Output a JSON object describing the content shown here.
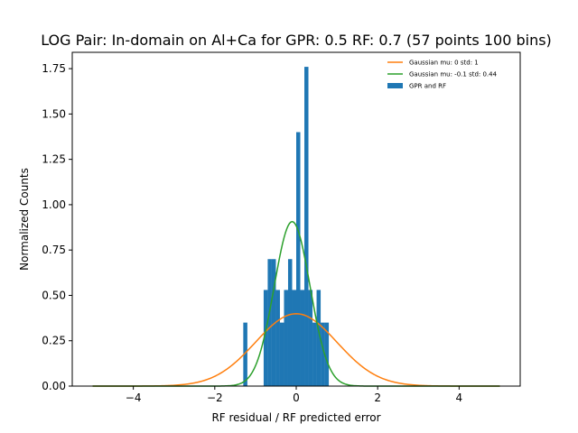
{
  "chart_data": {
    "type": "bar",
    "title": "LOG Pair: In-domain on Al+Ca for GPR: 0.5 RF: 0.7 (57 points 100 bins)",
    "xlabel": "RF residual / RF predicted error",
    "ylabel": "Normalized Counts",
    "xlim": [
      -5.5,
      5.5
    ],
    "ylim": [
      0,
      1.84
    ],
    "xticks": [
      -4,
      -2,
      0,
      2,
      4
    ],
    "xtick_labels": [
      "−4",
      "−2",
      "0",
      "2",
      "4"
    ],
    "yticks": [
      0,
      0.25,
      0.5,
      0.75,
      1.0,
      1.25,
      1.5,
      1.75
    ],
    "ytick_labels": [
      "0.00",
      "0.25",
      "0.50",
      "0.75",
      "1.00",
      "1.25",
      "1.50",
      "1.75"
    ],
    "grid": false,
    "legend_position": "top-right",
    "bin_width": 0.1,
    "histogram": {
      "name": "GPR and RF",
      "color": "#1f77b4",
      "bin_starts": [
        -1.3,
        -0.8,
        -0.7,
        -0.6,
        -0.5,
        -0.4,
        -0.3,
        -0.2,
        -0.1,
        0.0,
        0.1,
        0.2,
        0.3,
        0.4,
        0.5,
        0.6,
        0.7
      ],
      "values": [
        0.35,
        0.53,
        0.7,
        0.7,
        0.53,
        0.35,
        0.53,
        0.7,
        0.53,
        1.4,
        0.53,
        1.76,
        0.53,
        0.35,
        0.53,
        0.35,
        0.35
      ]
    },
    "series": [
      {
        "name": "Gaussian mu: 0 std: 1",
        "type": "line",
        "color": "#ff7f0e",
        "mu": 0,
        "std": 1,
        "x_range": [
          -5,
          5
        ]
      },
      {
        "name": "Gaussian mu: -0.1 std: 0.44",
        "type": "line",
        "color": "#2ca02c",
        "mu": -0.1,
        "std": 0.44,
        "x_range": [
          -5,
          5
        ]
      }
    ]
  }
}
